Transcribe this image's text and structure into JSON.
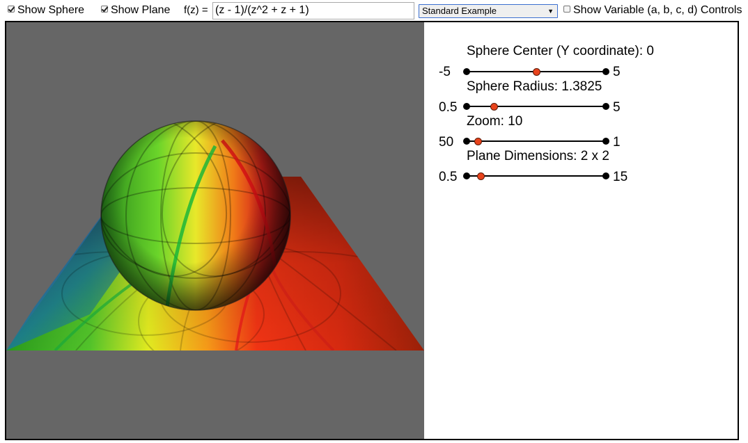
{
  "toolbar": {
    "show_sphere": {
      "label": "Show Sphere",
      "checked": true
    },
    "show_plane": {
      "label": "Show Plane",
      "checked": true
    },
    "fz_label": "f(z) =",
    "fz_value": "(z - 1)/(z^2 + z + 1)",
    "example_select": "Standard Example",
    "show_variable": {
      "label": "Show Variable (a, b, c, d) Controls",
      "checked": false
    }
  },
  "controls": {
    "sphere_center": {
      "label": "Sphere Center (Y coordinate): 0",
      "min": "-5",
      "max": "5",
      "value": 0,
      "range": [
        -5,
        5
      ]
    },
    "sphere_radius": {
      "label": "Sphere Radius: 1.3825",
      "min": "0.5",
      "max": "5",
      "value": 1.3825,
      "range": [
        0.5,
        5
      ]
    },
    "zoom": {
      "label": "Zoom: 10",
      "min": "50",
      "max": "1",
      "value": 10,
      "range": [
        50,
        1
      ]
    },
    "plane_dimensions": {
      "label": "Plane Dimensions: 2 x 2",
      "min": "0.5",
      "max": "15",
      "value": 2,
      "range": [
        0.5,
        15
      ]
    }
  },
  "colors": {
    "viewport_bg": "#666666",
    "slider_handle": "#e8431c",
    "select_border": "#3b6fd0"
  }
}
